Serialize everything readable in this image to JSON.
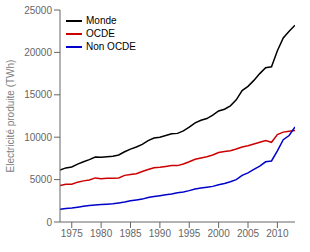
{
  "chart_data": {
    "type": "line",
    "ylabel": "Electricité produite (TWh)",
    "x": [
      1973,
      1974,
      1975,
      1976,
      1977,
      1978,
      1979,
      1980,
      1981,
      1982,
      1983,
      1984,
      1985,
      1986,
      1987,
      1988,
      1989,
      1990,
      1991,
      1992,
      1993,
      1994,
      1995,
      1996,
      1997,
      1998,
      1999,
      2000,
      2001,
      2002,
      2003,
      2004,
      2005,
      2006,
      2007,
      2008,
      2009,
      2010,
      2011,
      2012,
      2013
    ],
    "series": [
      {
        "name": "Monde",
        "color": "#000000",
        "values": [
          6130,
          6380,
          6490,
          6820,
          7100,
          7350,
          7650,
          7635,
          7700,
          7750,
          7900,
          8280,
          8600,
          8850,
          9150,
          9600,
          9900,
          10000,
          10200,
          10400,
          10450,
          10750,
          11200,
          11700,
          12000,
          12200,
          12600,
          13100,
          13300,
          13700,
          14400,
          15500,
          16000,
          16700,
          17500,
          18200,
          18300,
          20200,
          21700,
          22500,
          23200
        ]
      },
      {
        "name": "OCDE",
        "color": "#cc0000",
        "values": [
          4300,
          4450,
          4450,
          4700,
          4850,
          4950,
          5200,
          5100,
          5150,
          5150,
          5200,
          5500,
          5600,
          5700,
          5950,
          6200,
          6400,
          6450,
          6550,
          6650,
          6650,
          6850,
          7100,
          7400,
          7550,
          7700,
          7900,
          8200,
          8300,
          8400,
          8600,
          8850,
          9000,
          9200,
          9400,
          9600,
          9400,
          10300,
          10600,
          10700,
          10800
        ]
      },
      {
        "name": "Non OCDE",
        "color": "#0000cc",
        "values": [
          1500,
          1600,
          1650,
          1750,
          1850,
          1950,
          2000,
          2050,
          2100,
          2150,
          2250,
          2350,
          2500,
          2600,
          2700,
          2900,
          3000,
          3100,
          3200,
          3300,
          3450,
          3550,
          3700,
          3900,
          4000,
          4100,
          4200,
          4400,
          4550,
          4750,
          5000,
          5500,
          5800,
          6200,
          6600,
          7100,
          7200,
          8400,
          9700,
          10200,
          11200
        ]
      }
    ],
    "xlim": [
      1973,
      2013
    ],
    "ylim": [
      0,
      25000
    ],
    "xticks": [
      1975,
      1980,
      1985,
      1990,
      1995,
      2000,
      2005,
      2010
    ],
    "yticks": [
      0,
      5000,
      10000,
      15000,
      20000,
      25000
    ],
    "legend": "upper left",
    "grid": false
  }
}
